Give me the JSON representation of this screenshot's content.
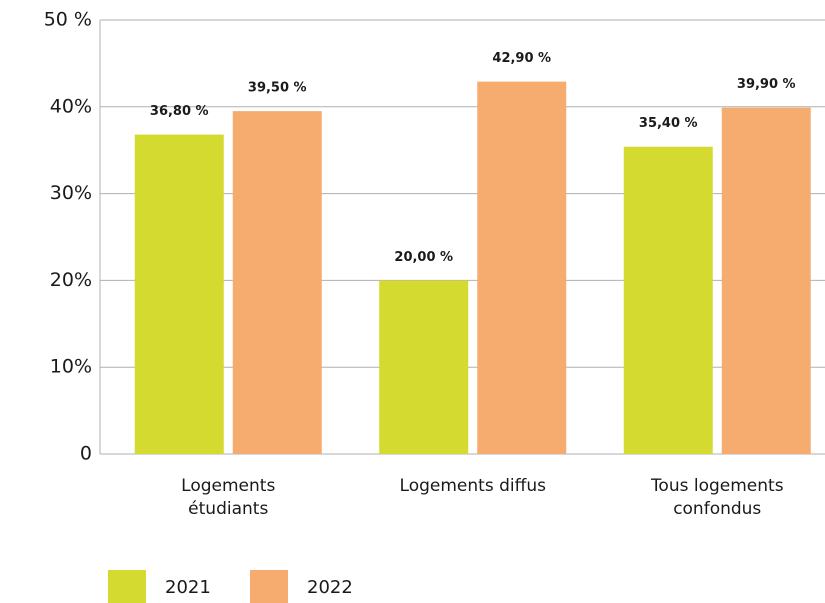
{
  "chart_data": {
    "type": "bar",
    "categories": [
      "Logements étudiants",
      "Logements diffus",
      "Tous logements confondus"
    ],
    "series": [
      {
        "name": "2021",
        "color": "#d4da30",
        "values": [
          36.8,
          20.0,
          35.4
        ],
        "value_labels": [
          "36,80 %",
          "20,00 %",
          "35,40 %"
        ]
      },
      {
        "name": "2022",
        "color": "#f5ac6e",
        "values": [
          39.5,
          42.9,
          39.9
        ],
        "value_labels": [
          "39,50 %",
          "42,90 %",
          "39,90 %"
        ]
      }
    ],
    "ylim": [
      0,
      50
    ],
    "yticks": [
      0,
      {
        "value": 10,
        "label": "10%"
      },
      {
        "value": 20,
        "label": "20%"
      },
      {
        "value": 30,
        "label": "30%"
      },
      {
        "value": 40,
        "label": "40%"
      },
      {
        "value": 50,
        "label": "50 %"
      }
    ],
    "grid": true,
    "legend": "bottom-left"
  }
}
